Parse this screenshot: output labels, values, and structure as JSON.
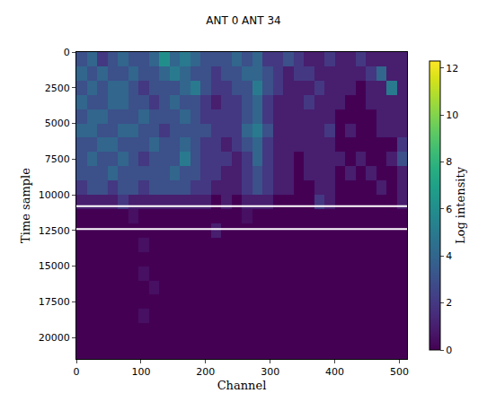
{
  "chart_data": {
    "type": "heatmap",
    "title": "ANT 0 ANT 34",
    "x_label": "Channel",
    "y_label": "Time sample",
    "colorbar_label": "Log intensity",
    "color": "Viridis",
    "xlim": [
      0,
      512
    ],
    "xticks": [
      0,
      100,
      200,
      300,
      400,
      500
    ],
    "ylim": [
      21500,
      0
    ],
    "yticks": [
      0,
      2500,
      5000,
      7500,
      10000,
      12500,
      15000,
      17500,
      20000
    ],
    "colorbar_range": [
      0,
      12.3
    ],
    "colorbar_ticks": [
      0,
      2,
      4,
      6,
      8,
      10,
      12
    ],
    "hlines": [
      10800,
      12400
    ],
    "x_edges": [
      0,
      16,
      32,
      48,
      64,
      80,
      96,
      112,
      128,
      144,
      160,
      176,
      192,
      208,
      224,
      240,
      256,
      272,
      288,
      304,
      320,
      336,
      352,
      368,
      384,
      400,
      416,
      432,
      448,
      464,
      480,
      496,
      512
    ],
    "y_edges": [
      0,
      1000,
      2000,
      3000,
      4000,
      5000,
      6000,
      7000,
      8000,
      9000,
      10000,
      11000,
      12000,
      13000,
      14000,
      15000,
      16000,
      17000,
      18000,
      19000,
      20000,
      21000,
      21500
    ],
    "cells": [
      [
        3,
        4,
        2,
        3,
        4,
        3,
        3,
        4,
        6,
        4,
        5,
        4,
        3,
        3,
        3,
        4,
        3,
        4,
        2,
        2,
        3,
        2,
        1,
        1,
        2,
        1,
        1,
        2,
        1,
        1,
        1,
        1
      ],
      [
        4,
        3,
        4,
        3,
        3,
        4,
        3,
        3,
        4,
        5,
        4,
        3,
        3,
        2,
        3,
        3,
        4,
        4,
        3,
        2,
        1,
        2,
        2,
        1,
        1,
        1,
        1,
        1,
        2,
        4,
        1,
        1
      ],
      [
        3,
        4,
        3,
        4,
        4,
        3,
        2,
        3,
        3,
        3,
        4,
        5,
        3,
        2,
        2,
        3,
        3,
        5,
        3,
        2,
        1,
        1,
        1,
        2,
        1,
        1,
        1,
        0,
        1,
        1,
        5,
        1
      ],
      [
        4,
        3,
        3,
        4,
        4,
        3,
        3,
        2,
        3,
        4,
        3,
        3,
        2,
        1,
        2,
        2,
        3,
        4,
        2,
        1,
        1,
        1,
        2,
        1,
        1,
        1,
        0,
        0,
        1,
        1,
        1,
        1
      ],
      [
        3,
        4,
        4,
        3,
        3,
        3,
        4,
        3,
        3,
        3,
        4,
        3,
        2,
        2,
        2,
        2,
        3,
        4,
        2,
        1,
        1,
        1,
        1,
        1,
        1,
        0,
        0,
        0,
        0,
        1,
        1,
        1
      ],
      [
        4,
        4,
        3,
        3,
        4,
        4,
        3,
        3,
        2,
        3,
        3,
        3,
        3,
        2,
        2,
        2,
        4,
        5,
        3,
        1,
        1,
        1,
        1,
        1,
        2,
        0,
        1,
        0,
        0,
        1,
        1,
        1
      ],
      [
        3,
        3,
        4,
        4,
        3,
        3,
        3,
        4,
        3,
        3,
        4,
        3,
        2,
        2,
        1,
        2,
        3,
        4,
        2,
        1,
        1,
        1,
        1,
        1,
        1,
        0,
        0,
        0,
        0,
        0,
        0,
        2
      ],
      [
        3,
        4,
        3,
        3,
        4,
        3,
        2,
        3,
        3,
        3,
        5,
        3,
        2,
        2,
        2,
        1,
        2,
        4,
        2,
        1,
        1,
        0,
        1,
        1,
        1,
        1,
        0,
        1,
        0,
        0,
        1,
        3
      ],
      [
        3,
        3,
        3,
        4,
        3,
        3,
        3,
        3,
        3,
        4,
        3,
        3,
        2,
        2,
        1,
        1,
        2,
        3,
        2,
        1,
        1,
        0,
        1,
        1,
        1,
        0,
        1,
        0,
        1,
        0,
        0,
        1
      ],
      [
        2,
        3,
        3,
        2,
        3,
        3,
        2,
        3,
        3,
        3,
        3,
        2,
        2,
        1,
        1,
        1,
        2,
        3,
        2,
        1,
        1,
        0,
        0,
        1,
        1,
        0,
        0,
        0,
        0,
        1,
        0,
        1
      ],
      [
        1,
        1,
        1,
        1,
        2,
        1,
        1,
        1,
        1,
        1,
        1,
        1,
        1,
        0,
        1,
        0,
        1,
        1,
        1,
        0,
        0,
        0,
        0,
        2,
        1,
        0,
        0,
        0,
        0,
        0,
        0,
        1
      ],
      [
        0,
        0,
        0,
        0,
        0,
        0.5,
        0,
        0,
        0,
        0,
        0,
        0,
        0,
        0,
        0,
        0,
        0.5,
        0,
        0,
        0,
        0,
        0,
        0,
        0,
        0,
        0,
        0,
        0,
        0,
        0,
        0,
        0
      ],
      [
        0,
        0,
        0,
        0,
        0,
        0,
        0,
        0,
        0,
        0,
        0,
        0,
        0,
        1,
        0,
        0,
        0,
        0,
        0,
        0,
        0,
        0,
        0,
        0,
        0,
        0,
        0,
        0,
        0,
        0,
        0,
        0
      ],
      [
        0,
        0,
        0,
        0,
        0,
        0,
        0.5,
        0,
        0,
        0,
        0,
        0,
        0,
        0,
        0,
        0,
        0,
        0,
        0,
        0,
        0,
        0,
        0,
        0,
        0,
        0,
        0,
        0,
        0,
        0,
        0,
        0
      ],
      [
        0,
        0,
        0,
        0,
        0,
        0,
        0,
        0,
        0,
        0,
        0,
        0,
        0,
        0,
        0,
        0,
        0,
        0,
        0,
        0,
        0,
        0,
        0,
        0,
        0,
        0,
        0,
        0,
        0,
        0,
        0,
        0
      ],
      [
        0,
        0,
        0,
        0,
        0,
        0,
        0.5,
        0,
        0,
        0,
        0,
        0,
        0,
        0,
        0,
        0,
        0,
        0,
        0,
        0,
        0,
        0,
        0,
        0,
        0,
        0,
        0,
        0,
        0,
        0,
        0,
        0
      ],
      [
        0,
        0,
        0,
        0,
        0,
        0,
        0,
        0.5,
        0,
        0,
        0,
        0,
        0,
        0,
        0,
        0,
        0,
        0,
        0,
        0,
        0,
        0,
        0,
        0,
        0,
        0,
        0,
        0,
        0,
        0,
        0,
        0
      ],
      [
        0,
        0,
        0,
        0,
        0,
        0,
        0,
        0,
        0,
        0,
        0,
        0,
        0,
        0,
        0,
        0,
        0,
        0,
        0,
        0,
        0,
        0,
        0,
        0,
        0,
        0,
        0,
        0,
        0,
        0,
        0,
        0
      ],
      [
        0,
        0,
        0,
        0,
        0,
        0,
        0.5,
        0,
        0,
        0,
        0,
        0,
        0,
        0,
        0,
        0,
        0,
        0,
        0,
        0,
        0,
        0,
        0,
        0,
        0,
        0,
        0,
        0,
        0,
        0,
        0,
        0
      ],
      [
        0,
        0,
        0,
        0,
        0,
        0,
        0,
        0,
        0,
        0,
        0,
        0,
        0,
        0,
        0,
        0,
        0,
        0,
        0,
        0,
        0,
        0,
        0,
        0,
        0,
        0,
        0,
        0,
        0,
        0,
        0,
        0
      ],
      [
        0,
        0,
        0,
        0,
        0,
        0,
        0,
        0,
        0,
        0,
        0,
        0,
        0,
        0,
        0,
        0,
        0,
        0,
        0,
        0,
        0,
        0,
        0,
        0,
        0,
        0,
        0,
        0,
        0,
        0,
        0,
        0
      ],
      [
        0,
        0,
        0,
        0,
        0,
        0,
        0,
        0,
        0,
        0,
        0,
        0,
        0,
        0,
        0,
        0,
        0,
        0,
        0,
        0,
        0,
        0,
        0,
        0,
        0,
        0,
        0,
        0,
        0,
        0,
        0,
        0
      ]
    ]
  }
}
